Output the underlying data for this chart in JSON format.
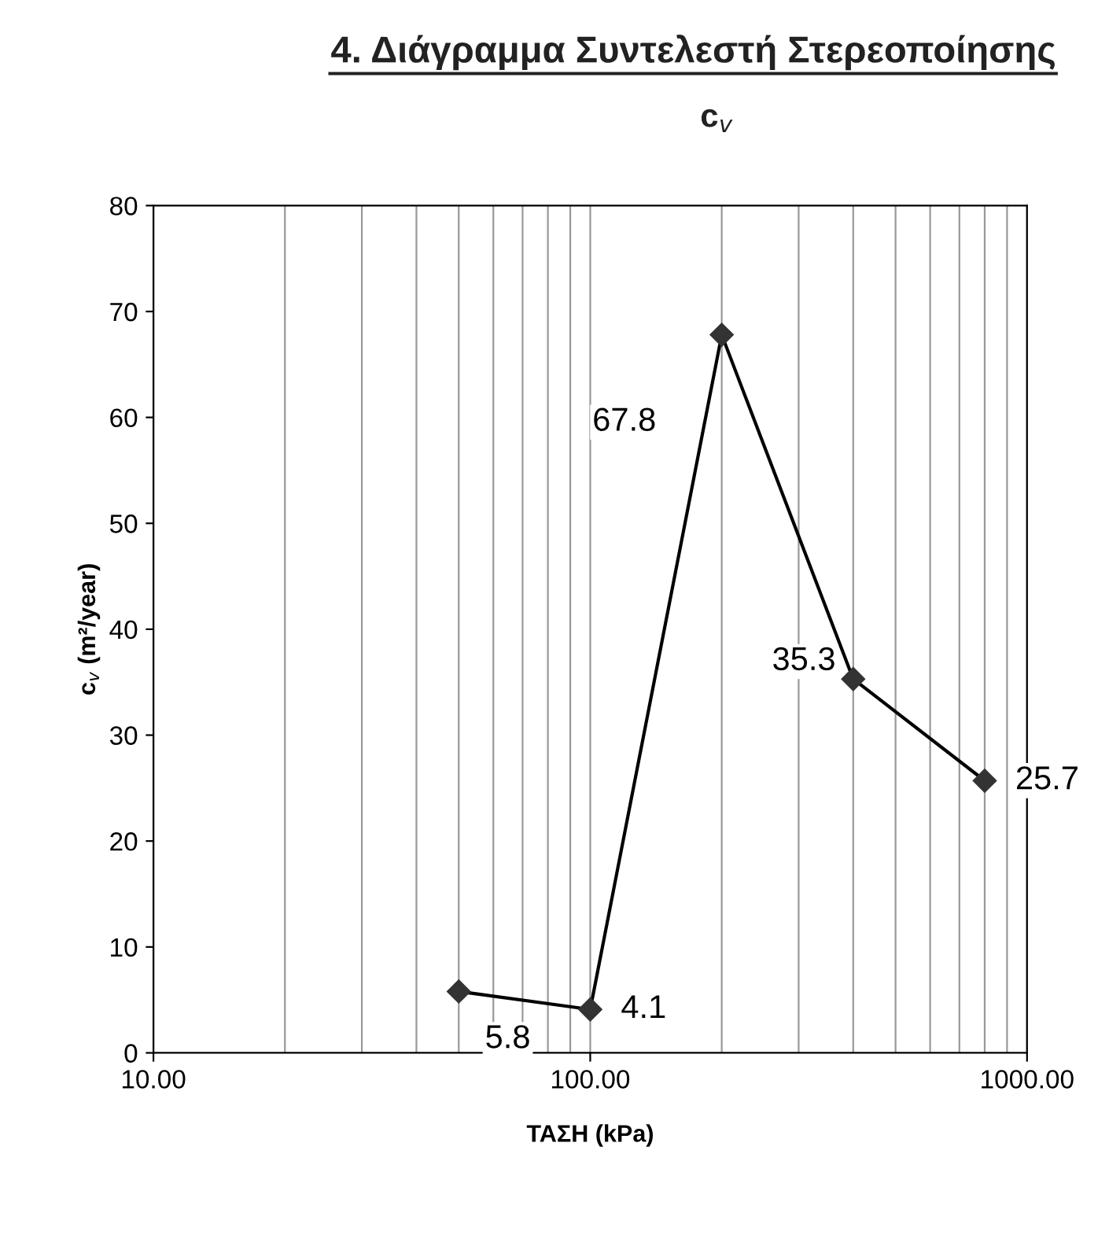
{
  "chart_data": {
    "type": "line",
    "title": "4. Διάγραμμα Συντελεστή Στερεοποίησης",
    "subtitle": "c$_{v}$",
    "xlabel": "ΤΑΣΗ (kPa)",
    "ylabel": "c$_{v}$ (m²/year)",
    "x": [
      50,
      100,
      200,
      400,
      800
    ],
    "series": [
      {
        "color": "#333333",
        "values": [
          5.8,
          4.1,
          67.8,
          35.3,
          25.7
        ]
      }
    ],
    "log": "x",
    "xlim": [
      10,
      1000
    ],
    "xticks": [
      {
        "value": 10,
        "label": "10.00"
      },
      {
        "value": 100,
        "label": "100.00"
      },
      {
        "value": 1000,
        "label": "1000.00"
      }
    ],
    "ylim": [
      0,
      80
    ],
    "yticks": [
      0,
      10,
      20,
      30,
      40,
      50,
      60,
      70,
      80
    ],
    "grid": "x",
    "marker": "diamond",
    "line_style": "solid",
    "data_labels": true
  }
}
